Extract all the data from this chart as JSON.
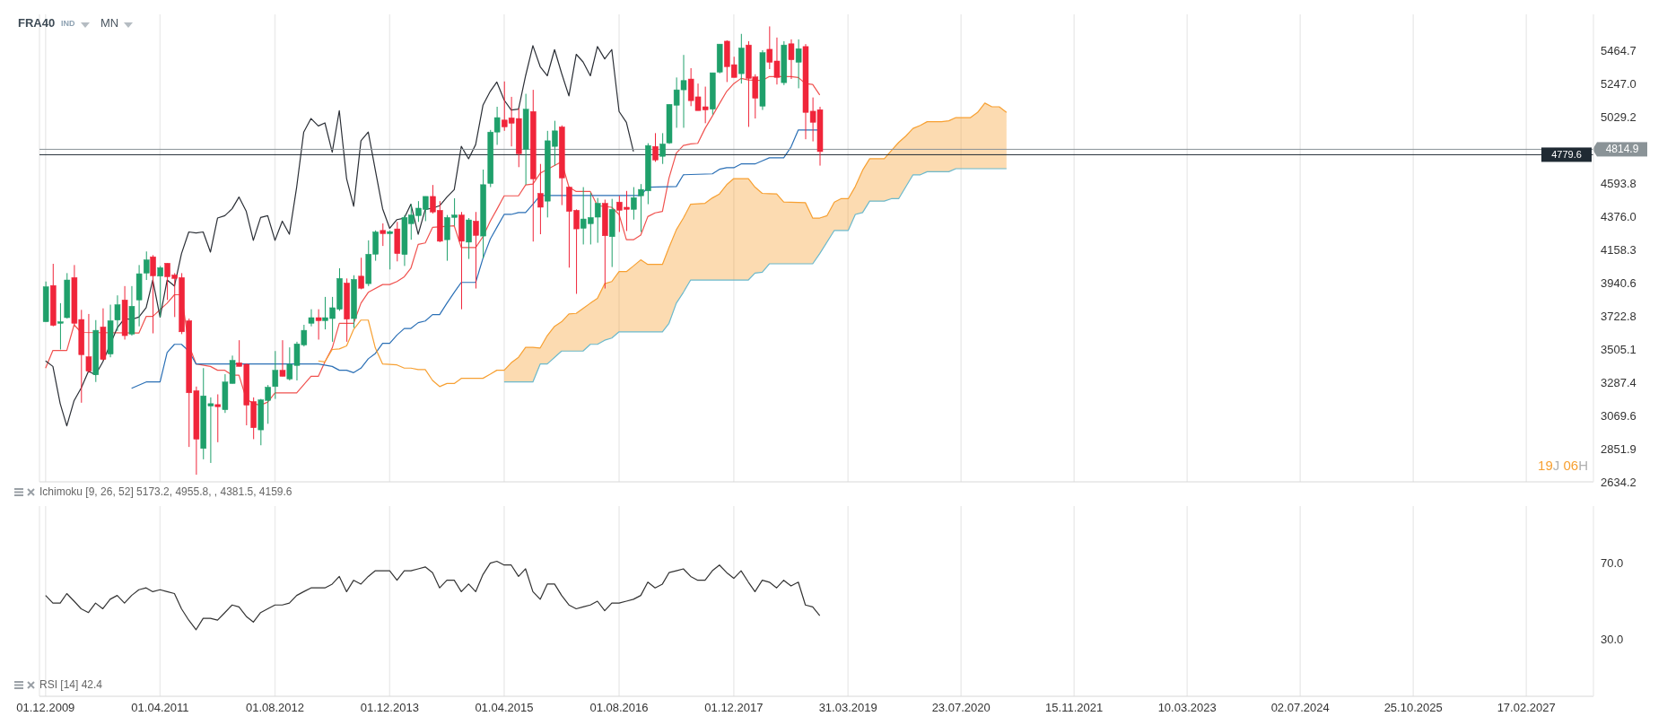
{
  "chart_data": [
    {
      "type": "candlestick",
      "title": "FRA40",
      "annotations": [
        "IND",
        "MN",
        "Ichimoku [9, 26, 52] 5173.2, 4955.8, , 4381.5, 4159.6",
        "19J 06H"
      ],
      "x": [
        "2009-12",
        "2010-01",
        "2010-02",
        "2010-03",
        "2010-04",
        "2010-05",
        "2010-06",
        "2010-07",
        "2010-08",
        "2010-09",
        "2010-10",
        "2010-11",
        "2010-12",
        "2011-01",
        "2011-02",
        "2011-03",
        "2011-04",
        "2011-05",
        "2011-06",
        "2011-07",
        "2011-08",
        "2011-09",
        "2011-10",
        "2011-11",
        "2011-12",
        "2012-01",
        "2012-02",
        "2012-03",
        "2012-04",
        "2012-05",
        "2012-06",
        "2012-07",
        "2012-08",
        "2012-09",
        "2012-10",
        "2012-11",
        "2012-12",
        "2013-01",
        "2013-02",
        "2013-03",
        "2013-04",
        "2013-05",
        "2013-06",
        "2013-07",
        "2013-08",
        "2013-09",
        "2013-10",
        "2013-11",
        "2013-12",
        "2014-01",
        "2014-02",
        "2014-03",
        "2014-04",
        "2014-05",
        "2014-06",
        "2014-07",
        "2014-08",
        "2014-09",
        "2014-10",
        "2014-11",
        "2014-12",
        "2015-01",
        "2015-02",
        "2015-03",
        "2015-04",
        "2015-05",
        "2015-06",
        "2015-07",
        "2015-08",
        "2015-09",
        "2015-10",
        "2015-11",
        "2015-12",
        "2016-01",
        "2016-02",
        "2016-03",
        "2016-04",
        "2016-05",
        "2016-06",
        "2016-07",
        "2016-08",
        "2016-09",
        "2016-10",
        "2016-11",
        "2016-12",
        "2017-01",
        "2017-02",
        "2017-03",
        "2017-04",
        "2017-05",
        "2017-06",
        "2017-07",
        "2017-08",
        "2017-09",
        "2017-10",
        "2017-11",
        "2017-12",
        "2018-01",
        "2018-02",
        "2018-03",
        "2018-04",
        "2018-05",
        "2018-06",
        "2018-07",
        "2018-08",
        "2018-09",
        "2018-10",
        "2018-11",
        "2018-12"
      ],
      "ohlc": [
        [
          3684,
          3948,
          3684,
          3914
        ],
        [
          3922,
          4064,
          3654,
          3660
        ],
        [
          3674,
          3806,
          3502,
          3684
        ],
        [
          3711,
          4003,
          3705,
          3958
        ],
        [
          3974,
          4056,
          3664,
          3674
        ],
        [
          3699,
          3762,
          3153,
          3468
        ],
        [
          3455,
          3735,
          3350,
          3360
        ],
        [
          3336,
          3695,
          3289,
          3628
        ],
        [
          3650,
          3772,
          3431,
          3437
        ],
        [
          3472,
          3796,
          3451,
          3691
        ],
        [
          3695,
          3857,
          3624,
          3796
        ],
        [
          3827,
          3918,
          3567,
          3593
        ],
        [
          3603,
          3918,
          3593,
          3786
        ],
        [
          3827,
          4056,
          3654,
          3999
        ],
        [
          4003,
          4145,
          3958,
          4090
        ],
        [
          4110,
          4121,
          3608,
          3985
        ],
        [
          3983,
          4050,
          3715,
          4039
        ],
        [
          4068,
          4068,
          3827,
          3979
        ],
        [
          3991,
          4003,
          3715,
          3968
        ],
        [
          3974,
          4003,
          3603,
          3618
        ],
        [
          3691,
          3705,
          2863,
          3218
        ],
        [
          3232,
          3259,
          2681,
          2914
        ],
        [
          2853,
          3380,
          2782,
          3198
        ],
        [
          3131,
          3188,
          2758,
          3147
        ],
        [
          3141,
          3208,
          2894,
          3127
        ],
        [
          3107,
          3340,
          3086,
          3289
        ],
        [
          3279,
          3462,
          3279,
          3431
        ],
        [
          3415,
          3563,
          3391,
          3391
        ],
        [
          3405,
          3411,
          3005,
          3137
        ],
        [
          3161,
          3188,
          2914,
          2989
        ],
        [
          2975,
          3178,
          2874,
          3172
        ],
        [
          3168,
          3269,
          3015,
          3255
        ],
        [
          3259,
          3492,
          3178,
          3366
        ],
        [
          3366,
          3563,
          3326,
          3326
        ],
        [
          3309,
          3516,
          3299,
          3405
        ],
        [
          3397,
          3553,
          3299,
          3539
        ],
        [
          3532,
          3664,
          3522,
          3628
        ],
        [
          3674,
          3766,
          3654,
          3711
        ],
        [
          3711,
          3766,
          3567,
          3691
        ],
        [
          3691,
          3847,
          3634,
          3711
        ],
        [
          3705,
          3847,
          3553,
          3776
        ],
        [
          3766,
          4035,
          3756,
          3968
        ],
        [
          3938,
          3968,
          3553,
          3701
        ],
        [
          3705,
          3989,
          3644,
          3962
        ],
        [
          3983,
          4104,
          3897,
          3904
        ],
        [
          3934,
          4218,
          3918,
          4127
        ],
        [
          4127,
          4283,
          4084,
          4273
        ],
        [
          4283,
          4329,
          4181,
          4262
        ],
        [
          4262,
          4283,
          4027,
          4275
        ],
        [
          4293,
          4339,
          4080,
          4131
        ],
        [
          4125,
          4384,
          4050,
          4368
        ],
        [
          4327,
          4455,
          4222,
          4384
        ],
        [
          4380,
          4475,
          4339,
          4429
        ],
        [
          4421,
          4506,
          4344,
          4506
        ],
        [
          4506,
          4581,
          4394,
          4404
        ],
        [
          4415,
          4475,
          4206,
          4212
        ],
        [
          4222,
          4384,
          4084,
          4368
        ],
        [
          4368,
          4494,
          4313,
          4384
        ],
        [
          4384,
          4404,
          3766,
          4212
        ],
        [
          4206,
          4364,
          4096,
          4352
        ],
        [
          4344,
          4404,
          3902,
          4250
        ],
        [
          4246,
          4682,
          4100,
          4583
        ],
        [
          4591,
          4942,
          4567,
          4928
        ],
        [
          4928,
          5094,
          4844,
          5023
        ],
        [
          5007,
          5260,
          4936,
          4962
        ],
        [
          5021,
          5159,
          4834,
          4986
        ],
        [
          5017,
          5084,
          4698,
          4786
        ],
        [
          4814,
          5179,
          4583,
          5078
        ],
        [
          5063,
          5205,
          4210,
          4621
        ],
        [
          4526,
          4719,
          4258,
          4435
        ],
        [
          4475,
          4936,
          4368,
          4871
        ],
        [
          4834,
          5002,
          4708,
          4936
        ],
        [
          4962,
          4972,
          4449,
          4627
        ],
        [
          4567,
          4571,
          4039,
          4408
        ],
        [
          4415,
          4421,
          3867,
          4293
        ],
        [
          4297,
          4567,
          4191,
          4358
        ],
        [
          4327,
          4530,
          4191,
          4368
        ],
        [
          4370,
          4496,
          4202,
          4461
        ],
        [
          4461,
          4485,
          3902,
          4248
        ],
        [
          4242,
          4490,
          4043,
          4421
        ],
        [
          4469,
          4510,
          4273,
          4415
        ],
        [
          4435,
          4542,
          4279,
          4421
        ],
        [
          4421,
          4567,
          4354,
          4498
        ],
        [
          4510,
          4587,
          4273,
          4552
        ],
        [
          4542,
          4855,
          4455,
          4840
        ],
        [
          4834,
          4921,
          4733,
          4745
        ],
        [
          4769,
          4921,
          4719,
          4850
        ],
        [
          4857,
          5110,
          4850,
          5110
        ],
        [
          5104,
          5286,
          4956,
          5205
        ],
        [
          5205,
          5434,
          4956,
          5266
        ],
        [
          5276,
          5347,
          5098,
          5134
        ],
        [
          5159,
          5246,
          5069,
          5069
        ],
        [
          5094,
          5226,
          4986,
          5073
        ],
        [
          5078,
          5317,
          5043,
          5317
        ],
        [
          5321,
          5505,
          5313,
          5505
        ],
        [
          5524,
          5530,
          5256,
          5357
        ],
        [
          5370,
          5422,
          5286,
          5286
        ],
        [
          5311,
          5572,
          5246,
          5479
        ],
        [
          5499,
          5524,
          4962,
          5280
        ],
        [
          5290,
          5307,
          5017,
          5150
        ],
        [
          5098,
          5465,
          5073,
          5449
        ],
        [
          5471,
          5621,
          5341,
          5386
        ],
        [
          5394,
          5548,
          5240,
          5286
        ],
        [
          5252,
          5524,
          5236,
          5499
        ],
        [
          5507,
          5536,
          5276,
          5402
        ],
        [
          5386,
          5536,
          5215,
          5475
        ],
        [
          5489,
          5505,
          4881,
          5057
        ],
        [
          5065,
          5155,
          4867,
          4992
        ],
        [
          5075,
          5094,
          4708,
          4800
        ]
      ],
      "colors": [
        "#1fa06b",
        "#f0253a",
        "#1fa06b",
        "#1fa06b",
        "#f0253a",
        "#f0253a",
        "#f0253a",
        "#1fa06b",
        "#f0253a",
        "#1fa06b",
        "#1fa06b",
        "#f0253a",
        "#1fa06b",
        "#1fa06b",
        "#1fa06b",
        "#f0253a",
        "#1fa06b",
        "#f0253a",
        "#f0253a",
        "#f0253a",
        "#f0253a",
        "#f0253a",
        "#1fa06b",
        "#1fa06b",
        "#f0253a",
        "#1fa06b",
        "#1fa06b",
        "#f0253a",
        "#f0253a",
        "#f0253a",
        "#1fa06b",
        "#1fa06b",
        "#1fa06b",
        "#f0253a",
        "#1fa06b",
        "#1fa06b",
        "#1fa06b",
        "#1fa06b",
        "#f0253a",
        "#1fa06b",
        "#1fa06b",
        "#1fa06b",
        "#f0253a",
        "#1fa06b",
        "#f0253a",
        "#1fa06b",
        "#1fa06b",
        "#f0253a",
        "#1fa06b",
        "#f0253a",
        "#1fa06b",
        "#1fa06b",
        "#1fa06b",
        "#1fa06b",
        "#f0253a",
        "#f0253a",
        "#1fa06b",
        "#1fa06b",
        "#f0253a",
        "#1fa06b",
        "#f0253a",
        "#1fa06b",
        "#1fa06b",
        "#1fa06b",
        "#f0253a",
        "#f0253a",
        "#f0253a",
        "#1fa06b",
        "#f0253a",
        "#f0253a",
        "#1fa06b",
        "#1fa06b",
        "#f0253a",
        "#f0253a",
        "#f0253a",
        "#1fa06b",
        "#1fa06b",
        "#1fa06b",
        "#f0253a",
        "#1fa06b",
        "#f0253a",
        "#f0253a",
        "#1fa06b",
        "#1fa06b",
        "#1fa06b",
        "#f0253a",
        "#1fa06b",
        "#1fa06b",
        "#1fa06b",
        "#1fa06b",
        "#f0253a",
        "#f0253a",
        "#f0253a",
        "#1fa06b",
        "#1fa06b",
        "#f0253a",
        "#f0253a",
        "#1fa06b",
        "#f0253a",
        "#f0253a",
        "#1fa06b",
        "#f0253a",
        "#f0253a",
        "#1fa06b",
        "#f0253a",
        "#1fa06b",
        "#f0253a",
        "#f0253a",
        "#f0253a"
      ],
      "series": [
        {
          "type": "line",
          "color": "#f0524f",
          "x": [
            "2009-12",
            "2010-01",
            "2010-03",
            "2010-04",
            "2010-05",
            "2011-01",
            "2011-02",
            "2011-03",
            "2011-05",
            "2011-06",
            "2011-07",
            "2011-08",
            "2011-09",
            "2011-11",
            "2011-12",
            "2012-01",
            "2012-02",
            "2012-03",
            "2012-04",
            "2012-05",
            "2012-06",
            "2012-07",
            "2012-08",
            "2012-11",
            "2013-01",
            "2013-02",
            "2013-03",
            "2013-04",
            "2013-05",
            "2013-07",
            "2013-08",
            "2013-09",
            "2013-11",
            "2013-12",
            "2014-01",
            "2014-02",
            "2014-03",
            "2014-04",
            "2014-05",
            "2014-06",
            "2014-09",
            "2014-10",
            "2014-12",
            "2015-01",
            "2015-02",
            "2015-03",
            "2015-04",
            "2015-06",
            "2015-07",
            "2015-08",
            "2015-09",
            "2015-12",
            "2016-01",
            "2016-02",
            "2016-04",
            "2016-05",
            "2016-07",
            "2016-08",
            "2016-09",
            "2016-10",
            "2016-11",
            "2016-12",
            "2017-01",
            "2017-02",
            "2017-03",
            "2017-04",
            "2017-05",
            "2017-06",
            "2017-07",
            "2017-08",
            "2017-09",
            "2017-10",
            "2017-11",
            "2017-12",
            "2018-01",
            "2018-02",
            "2018-04",
            "2018-05",
            "2018-08",
            "2018-09",
            "2018-10",
            "2018-11",
            "2018-12"
          ],
          "values": [
            3380,
            3496,
            3496,
            3664,
            3614,
            3610,
            3719,
            3719,
            3806,
            3861,
            3861,
            3532,
            3407,
            3391,
            3366,
            3366,
            3334,
            3334,
            3178,
            3147,
            3137,
            3157,
            3218,
            3218,
            3326,
            3326,
            3421,
            3512,
            3674,
            3674,
            3806,
            3877,
            3928,
            3928,
            3948,
            3979,
            4035,
            4191,
            4201,
            4303,
            4313,
            4171,
            4171,
            4242,
            4344,
            4421,
            4510,
            4510,
            4581,
            4587,
            4658,
            4733,
            4567,
            4538,
            4538,
            4445,
            4435,
            4388,
            4222,
            4222,
            4252,
            4374,
            4398,
            4408,
            4627,
            4790,
            4840,
            4850,
            4854,
            4952,
            5033,
            5114,
            5195,
            5246,
            5280,
            5270,
            5266,
            5292,
            5292,
            5286,
            5246,
            5240,
            5171
          ]
        },
        {
          "type": "line",
          "color": "#2a6fb5",
          "x": [
            "2010-12",
            "2011-02",
            "2011-04",
            "2011-05",
            "2011-06",
            "2011-07",
            "2011-08",
            "2011-09",
            "2013-02",
            "2013-04",
            "2013-05",
            "2013-06",
            "2013-07",
            "2013-08",
            "2013-09",
            "2013-10",
            "2013-11",
            "2013-12",
            "2014-01",
            "2014-02",
            "2014-03",
            "2014-04",
            "2014-05",
            "2014-06",
            "2014-07",
            "2014-08",
            "2014-09",
            "2014-10",
            "2014-12",
            "2015-01",
            "2015-02",
            "2015-03",
            "2015-04",
            "2015-05",
            "2015-06",
            "2015-07",
            "2015-08",
            "2015-09",
            "2016-11",
            "2016-12",
            "2017-04",
            "2017-05",
            "2017-09",
            "2017-10",
            "2017-11",
            "2017-12",
            "2018-01",
            "2018-03",
            "2018-04",
            "2018-05",
            "2018-07",
            "2018-08",
            "2018-09",
            "2018-12"
          ],
          "values": [
            3248,
            3289,
            3289,
            3482,
            3536,
            3536,
            3492,
            3407,
            3407,
            3391,
            3366,
            3366,
            3350,
            3380,
            3441,
            3476,
            3543,
            3543,
            3597,
            3640,
            3640,
            3678,
            3689,
            3731,
            3731,
            3806,
            3877,
            3942,
            3942,
            4100,
            4226,
            4303,
            4388,
            4388,
            4400,
            4400,
            4455,
            4512,
            4512,
            4567,
            4571,
            4648,
            4654,
            4684,
            4694,
            4694,
            4719,
            4719,
            4739,
            4759,
            4759,
            4830,
            4942,
            4942
          ]
        },
        {
          "type": "line",
          "color": "#2b2f36",
          "x": [
            "2009-12",
            "2010-01",
            "2010-02",
            "2010-03",
            "2010-04",
            "2010-05",
            "2010-06",
            "2010-07",
            "2010-08",
            "2010-10",
            "2010-11",
            "2010-12",
            "2011-01",
            "2011-02",
            "2011-03",
            "2011-04",
            "2011-05",
            "2011-06",
            "2011-07",
            "2011-08",
            "2011-09",
            "2011-10",
            "2011-11",
            "2011-12",
            "2012-01",
            "2012-02",
            "2012-03",
            "2012-04",
            "2012-05",
            "2012-06",
            "2012-07",
            "2012-08",
            "2012-09",
            "2012-10",
            "2012-11",
            "2012-12",
            "2013-01",
            "2013-02",
            "2013-03",
            "2013-04",
            "2013-05",
            "2013-06",
            "2013-07",
            "2013-08",
            "2013-09",
            "2013-10",
            "2013-11",
            "2013-12",
            "2014-01",
            "2014-02",
            "2014-03",
            "2014-04",
            "2014-05",
            "2014-06",
            "2014-07",
            "2014-08",
            "2014-09",
            "2014-10",
            "2014-11",
            "2014-12",
            "2015-01",
            "2015-02",
            "2015-03",
            "2015-04",
            "2015-05",
            "2015-06",
            "2015-07",
            "2015-08",
            "2015-09",
            "2015-10",
            "2015-11",
            "2015-12",
            "2016-01",
            "2016-02",
            "2016-03",
            "2016-04",
            "2016-05",
            "2016-06",
            "2016-07",
            "2016-08",
            "2016-09",
            "2016-10"
          ],
          "values": [
            3427,
            3391,
            3147,
            3001,
            3167,
            3249,
            3360,
            3336,
            3421,
            3644,
            3705,
            3699,
            3715,
            3776,
            3958,
            3715,
            3958,
            3918,
            4131,
            4273,
            4266,
            4273,
            4141,
            4364,
            4380,
            4425,
            4502,
            4408,
            4218,
            4368,
            4380,
            4218,
            4344,
            4258,
            4567,
            4928,
            5017,
            4968,
            4988,
            4796,
            5069,
            4623,
            4441,
            4871,
            4928,
            4678,
            4425,
            4297,
            4354,
            4364,
            4455,
            4258,
            4421,
            4429,
            4445,
            4502,
            4550,
            4834,
            4753,
            4846,
            5104,
            5195,
            5256,
            5138,
            5073,
            5078,
            5297,
            5495,
            5357,
            5297,
            5469,
            5313,
            5165,
            5438,
            5388,
            5297,
            5489,
            5408,
            5469,
            5063,
            4992,
            4800
          ]
        },
        {
          "type": "line",
          "color": "#f7a032",
          "x": [
            "2013-02",
            "2013-03",
            "2013-04",
            "2013-05",
            "2013-06",
            "2013-07",
            "2013-08",
            "2013-09",
            "2013-10",
            "2013-11",
            "2014-01",
            "2014-02",
            "2014-03",
            "2014-04",
            "2014-05",
            "2014-06",
            "2014-07",
            "2014-08",
            "2014-09",
            "2014-10",
            "2015-01",
            "2015-02",
            "2015-03",
            "2015-04",
            "2015-05",
            "2015-06",
            "2015-07",
            "2015-08",
            "2015-09",
            "2015-10",
            "2015-11",
            "2015-12",
            "2016-01",
            "2016-02",
            "2016-03",
            "2016-04",
            "2016-05",
            "2016-06",
            "2016-07",
            "2016-08",
            "2016-09",
            "2016-10",
            "2016-11",
            "2016-12",
            "2017-01",
            "2017-02",
            "2017-03",
            "2017-04",
            "2017-05",
            "2017-06",
            "2017-08",
            "2017-09",
            "2017-10",
            "2017-11",
            "2017-12",
            "2018-02",
            "2018-03",
            "2018-04",
            "2018-05",
            "2018-06",
            "2018-07",
            "2018-10",
            "2018-11",
            "2018-12",
            "2019-01",
            "2019-02",
            "2019-03",
            "2019-04",
            "2019-05",
            "2019-06",
            "2019-07",
            "2019-09",
            "2019-10",
            "2019-11",
            "2019-12",
            "2020-01",
            "2020-02",
            "2020-03",
            "2020-05",
            "2020-06",
            "2020-07",
            "2020-09",
            "2020-10",
            "2020-11",
            "2020-12",
            "2021-01",
            "2021-02"
          ],
          "values": [
            3427,
            3421,
            3502,
            3506,
            3526,
            3634,
            3695,
            3695,
            3512,
            3407,
            3401,
            3380,
            3380,
            3370,
            3370,
            3299,
            3259,
            3279,
            3279,
            3313,
            3313,
            3340,
            3366,
            3366,
            3415,
            3451,
            3516,
            3516,
            3512,
            3593,
            3654,
            3684,
            3735,
            3739,
            3772,
            3806,
            3837,
            3934,
            3948,
            4013,
            4013,
            4050,
            4090,
            4060,
            4060,
            4060,
            4171,
            4287,
            4364,
            4455,
            4461,
            4496,
            4522,
            4583,
            4623,
            4623,
            4567,
            4526,
            4524,
            4522,
            4469,
            4465,
            4364,
            4364,
            4380,
            4469,
            4491,
            4491,
            4571,
            4678,
            4753,
            4753,
            4806,
            4860,
            4901,
            4952,
            4972,
            4996,
            4996,
            5002,
            5023,
            5023,
            5057,
            5118,
            5094,
            5094,
            5057
          ],
          "lower": [
            null,
            null,
            null,
            null,
            null,
            null,
            null,
            null,
            null,
            null,
            null,
            null,
            null,
            null,
            null,
            null,
            null,
            null,
            null,
            null,
            null,
            null,
            null,
            3289,
            3289,
            3289,
            3289,
            3289,
            3407,
            3407,
            3449,
            3492,
            3492,
            3492,
            3492,
            3536,
            3536,
            3563,
            3577,
            3618,
            3618,
            3618,
            3618,
            3618,
            3618,
            3618,
            3674,
            3806,
            3877,
            3958,
            3958,
            3958,
            3958,
            3958,
            3958,
            3958,
            4003,
            4009,
            4064,
            4064,
            4064,
            4064,
            4064,
            4131,
            4207,
            4283,
            4283,
            4283,
            4388,
            4400,
            4475,
            4475,
            4491,
            4491,
            4570,
            4648,
            4648,
            4668,
            4668,
            4668,
            4688,
            4688,
            4688,
            4688,
            4688,
            4688,
            4688
          ],
          "upper": [
            null,
            null,
            null,
            null,
            null,
            null,
            null,
            null,
            null,
            null,
            null,
            null,
            null,
            null,
            null,
            null,
            null,
            null,
            null,
            null,
            null,
            null,
            null,
            3366,
            3415,
            3451,
            3516,
            3516,
            3512,
            3593,
            3654,
            3684,
            3735,
            3739,
            3772,
            3806,
            3837,
            3934,
            3948,
            4013,
            4013,
            4050,
            4090,
            4060,
            4060,
            4060,
            4171,
            4287,
            4364,
            4455,
            4461,
            4496,
            4522,
            4583,
            4623,
            4623,
            4567,
            4526,
            4524,
            4522,
            4469,
            4465,
            4364,
            4364,
            4380,
            4469,
            4491,
            4491,
            4571,
            4678,
            4753,
            4753,
            4806,
            4860,
            4901,
            4952,
            4972,
            4996,
            4996,
            5002,
            5023,
            5023,
            5057,
            5118,
            5094,
            5094,
            5057
          ]
        },
        {
          "type": "line",
          "color": "#6bb9cc",
          "x": [
            "2015-04",
            "2015-08",
            "2015-09",
            "2015-10",
            "2015-12",
            "2016-03",
            "2016-04",
            "2016-05",
            "2016-06",
            "2016-07",
            "2016-08",
            "2017-02",
            "2017-03",
            "2017-04",
            "2017-05",
            "2017-06",
            "2018-02",
            "2018-03",
            "2018-04",
            "2018-05",
            "2018-11",
            "2018-12",
            "2019-02",
            "2019-04",
            "2019-05",
            "2019-06",
            "2019-07",
            "2019-09",
            "2019-10",
            "2019-11",
            "2020-01",
            "2020-02",
            "2020-03",
            "2020-06",
            "2020-07",
            "2021-02"
          ],
          "values": [
            3289,
            3289,
            3407,
            3407,
            3492,
            3492,
            3536,
            3536,
            3563,
            3577,
            3618,
            3618,
            3674,
            3806,
            3877,
            3958,
            3958,
            4003,
            4009,
            4064,
            4064,
            4131,
            4283,
            4283,
            4388,
            4400,
            4475,
            4475,
            4491,
            4491,
            4648,
            4648,
            4668,
            4668,
            4688,
            4688
          ]
        }
      ],
      "ref_lines": [
        {
          "axis": "y",
          "value": 4814.9,
          "label": "4814.9",
          "color": "#8a9397"
        },
        {
          "axis": "y",
          "value": 4779.6,
          "label": "4779.6",
          "color": "#1f2a33"
        }
      ],
      "ylim": [
        2634.2,
        5700
      ],
      "yticks": [
        2634.2,
        2851.9,
        3069.6,
        3287.4,
        3505.1,
        3722.8,
        3940.6,
        4158.3,
        {
          "value": 4376,
          "label": "4376.0"
        },
        4593.8,
        5029.2,
        {
          "value": 5247,
          "label": "5247.0"
        },
        5464.7
      ],
      "xlim": [
        "2009-11-05",
        "2027-11-29"
      ],
      "xticks": [
        {
          "value": "2009-12-01",
          "label": null
        },
        {
          "value": "2011-04-01",
          "label": null
        },
        {
          "value": "2012-08-01",
          "label": null
        },
        {
          "value": "2013-12-01",
          "label": null
        },
        {
          "value": "2015-04-01",
          "label": null
        },
        {
          "value": "2016-08-01",
          "label": null
        },
        {
          "value": "2017-12-01",
          "label": null
        },
        {
          "value": "2019-03-31",
          "label": null
        },
        {
          "value": "2020-07-23",
          "label": null
        },
        {
          "value": "2021-11-15",
          "label": null
        },
        {
          "value": "2023-03-10",
          "label": null
        },
        {
          "value": "2024-07-02",
          "label": null
        },
        {
          "value": "2025-10-25",
          "label": null
        },
        {
          "value": "2027-02-17",
          "label": null
        }
      ],
      "grid": "x",
      "tick_labels": "y"
    },
    {
      "type": "line",
      "annotations": [
        "RSI [14] 42.4"
      ],
      "color": "#333333",
      "x": [
        "2009-12",
        "2010-01",
        "2010-02",
        "2010-03",
        "2010-04",
        "2010-05",
        "2010-06",
        "2010-07",
        "2010-08",
        "2010-09",
        "2010-10",
        "2010-11",
        "2010-12",
        "2011-01",
        "2011-02",
        "2011-03",
        "2011-04",
        "2011-05",
        "2011-06",
        "2011-07",
        "2011-08",
        "2011-09",
        "2011-10",
        "2011-11",
        "2011-12",
        "2012-01",
        "2012-02",
        "2012-03",
        "2012-04",
        "2012-05",
        "2012-06",
        "2012-07",
        "2012-08",
        "2012-09",
        "2012-10",
        "2012-11",
        "2012-12",
        "2013-01",
        "2013-02",
        "2013-03",
        "2013-04",
        "2013-05",
        "2013-06",
        "2013-07",
        "2013-08",
        "2013-09",
        "2013-10",
        "2013-11",
        "2013-12",
        "2014-01",
        "2014-02",
        "2014-03",
        "2014-04",
        "2014-05",
        "2014-06",
        "2014-07",
        "2014-08",
        "2014-09",
        "2014-10",
        "2014-11",
        "2014-12",
        "2015-01",
        "2015-02",
        "2015-03",
        "2015-04",
        "2015-05",
        "2015-06",
        "2015-07",
        "2015-08",
        "2015-09",
        "2015-10",
        "2015-11",
        "2015-12",
        "2016-01",
        "2016-02",
        "2016-03",
        "2016-04",
        "2016-05",
        "2016-06",
        "2016-07",
        "2016-08",
        "2016-09",
        "2016-10",
        "2016-11",
        "2016-12",
        "2017-01",
        "2017-02",
        "2017-03",
        "2017-04",
        "2017-05",
        "2017-06",
        "2017-07",
        "2017-08",
        "2017-09",
        "2017-10",
        "2017-11",
        "2017-12",
        "2018-01",
        "2018-02",
        "2018-03",
        "2018-04",
        "2018-05",
        "2018-06",
        "2018-07",
        "2018-08",
        "2018-09",
        "2018-10",
        "2018-11",
        "2018-12"
      ],
      "values": [
        53,
        49,
        49,
        54,
        50,
        46,
        44,
        49,
        46,
        51,
        53,
        49,
        53,
        56,
        57,
        55,
        56,
        55,
        54,
        46,
        40,
        35,
        41,
        41,
        40,
        44,
        48,
        47,
        42,
        39,
        44,
        46,
        48,
        48,
        49,
        53,
        55,
        57,
        57,
        57,
        59,
        63,
        55,
        61,
        59,
        63,
        66,
        66,
        66,
        61,
        66,
        66,
        67,
        68,
        65,
        57,
        61,
        61,
        55,
        59,
        55,
        64,
        70,
        71,
        69,
        69,
        63,
        67,
        55,
        51,
        59,
        59,
        53,
        48,
        46,
        47,
        48,
        50,
        45,
        49,
        49,
        50,
        51,
        53,
        60,
        57,
        59,
        65,
        66,
        67,
        63,
        61,
        61,
        66,
        69,
        65,
        62,
        66,
        60,
        55,
        61,
        60,
        57,
        61,
        58,
        60,
        48,
        47,
        42.4
      ],
      "ylim": [
        0,
        100
      ],
      "yticks": [
        {
          "value": 70,
          "label": "70.0"
        },
        {
          "value": 30,
          "label": "30.0"
        }
      ],
      "xlim": [
        "2009-11-05",
        "2027-11-29"
      ],
      "xticks": [
        {
          "value": "2009-12-01",
          "label": "01.12.2009"
        },
        {
          "value": "2011-04-01",
          "label": "01.04.2011"
        },
        {
          "value": "2012-08-01",
          "label": "01.08.2012"
        },
        {
          "value": "2013-12-01",
          "label": "01.12.2013"
        },
        {
          "value": "2015-04-01",
          "label": "01.04.2015"
        },
        {
          "value": "2016-08-01",
          "label": "01.08.2016"
        },
        {
          "value": "2017-12-01",
          "label": "01.12.2017"
        },
        {
          "value": "2019-03-31",
          "label": "31.03.2019"
        },
        {
          "value": "2020-07-23",
          "label": "23.07.2020"
        },
        {
          "value": "2021-11-15",
          "label": "15.11.2021"
        },
        {
          "value": "2023-03-10",
          "label": "10.03.2023"
        },
        {
          "value": "2024-07-02",
          "label": "02.07.2024"
        },
        {
          "value": "2025-10-25",
          "label": "25.10.2025"
        },
        {
          "value": "2027-02-17",
          "label": "17.02.2027"
        }
      ],
      "grid": "x"
    }
  ]
}
